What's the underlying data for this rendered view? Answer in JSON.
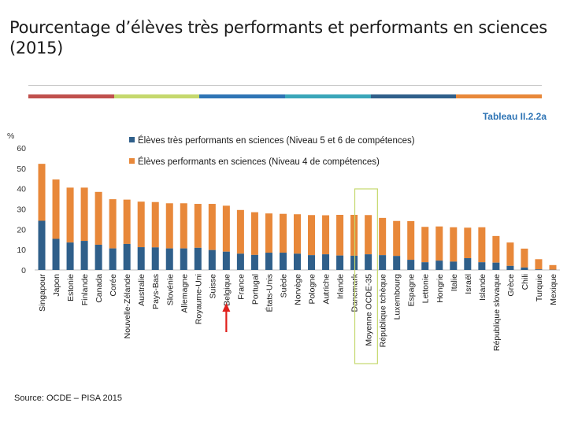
{
  "header": {
    "title": "Pourcentage d’élèves très performants et performants en sciences (2015)",
    "table_ref": "Tableau II.2.2a",
    "source": "Source: OCDE – PISA 2015"
  },
  "colors": {
    "top_performers": "#2f5f8a",
    "strong_performers": "#e8883a",
    "highlight_box": "#c5d86d",
    "arrow": "#e0201c",
    "color_bar": [
      "#c0504d",
      "#c5d86d",
      "#2e74b5",
      "#3aa6b9",
      "#2f5f8a",
      "#e8883a"
    ]
  },
  "chart_data": {
    "type": "bar",
    "stacked": true,
    "ylabel": "%",
    "ylim": [
      0,
      60
    ],
    "yticks": [
      0,
      10,
      20,
      30,
      40,
      50,
      60
    ],
    "highlight_category": "Moyenne OCDE-35",
    "arrow_category": "Belgique",
    "legend": [
      "Élèves très performants en sciences  (Niveau 5 et 6 de compétences)",
      "Élèves performants en sciences  (Niveau 4 de compétences)"
    ],
    "categories": [
      "Singapour",
      "Japon",
      "Estonie",
      "Finlande",
      "Canada",
      "Corée",
      "Nouvelle-Zélande",
      "Australie",
      "Pays-Bas",
      "Slovénie",
      "Allemagne",
      "Royaume-Uni",
      "Suisse",
      "Belgique",
      "France",
      "Portugal",
      "États-Unis",
      "Suède",
      "Norvège",
      "Pologne",
      "Autriche",
      "Irlande",
      "Danemark",
      "Moyenne OCDE-35",
      "République tchèque",
      "Luxembourg",
      "Espagne",
      "Lettonie",
      "Hongrie",
      "Italie",
      "Israël",
      "Islande",
      "République slovaque",
      "Grèce",
      "Chili",
      "Turquie",
      "Mexique"
    ],
    "series": [
      {
        "name": "Élèves très performants en sciences  (Niveau 5 et 6 de compétences)",
        "values": [
          24.2,
          15.3,
          13.5,
          14.3,
          12.4,
          10.6,
          12.8,
          11.2,
          11.1,
          10.6,
          10.6,
          10.9,
          9.8,
          9.0,
          8.0,
          7.4,
          8.5,
          8.5,
          8.0,
          7.3,
          7.7,
          7.1,
          7.0,
          7.7,
          7.3,
          6.9,
          5.0,
          3.8,
          4.6,
          4.1,
          5.8,
          3.8,
          3.6,
          2.0,
          1.2,
          0.3,
          0.1
        ]
      },
      {
        "name": "Élèves performants en sciences  (Niveau 4 de compétences)",
        "values": [
          28.0,
          29.2,
          27.0,
          26.2,
          26.0,
          24.2,
          21.8,
          22.4,
          22.3,
          22.2,
          22.2,
          21.6,
          22.7,
          22.6,
          21.5,
          21.0,
          19.3,
          19.1,
          19.4,
          19.7,
          19.2,
          20.0,
          20.1,
          19.3,
          18.3,
          17.2,
          19.0,
          17.4,
          16.8,
          16.9,
          15.0,
          17.2,
          13.1,
          11.5,
          9.3,
          5.0,
          2.3
        ]
      }
    ]
  }
}
